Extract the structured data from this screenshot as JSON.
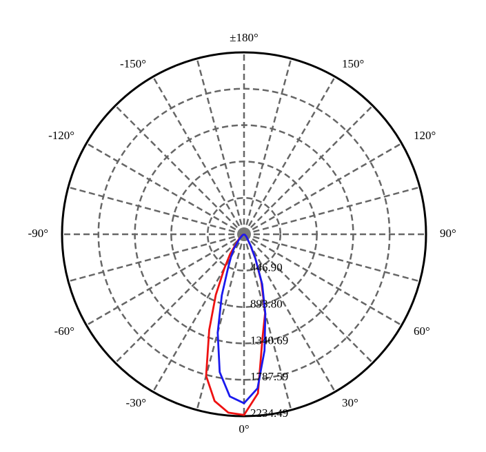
{
  "chart_data": {
    "type": "polar",
    "rlim": [
      0,
      2234.49
    ],
    "rticks": [
      {
        "value": 446.9,
        "label": "446.90"
      },
      {
        "value": 893.8,
        "label": "893.80"
      },
      {
        "value": 1340.69,
        "label": "1340.69"
      },
      {
        "value": 1787.59,
        "label": "1787.59"
      },
      {
        "value": 2234.49,
        "label": "2234.49"
      }
    ],
    "thetaticks": [
      {
        "value": 180,
        "label": "±180°"
      },
      {
        "value": -150,
        "label": "-150°"
      },
      {
        "value": 150,
        "label": "150°"
      },
      {
        "value": -120,
        "label": "-120°"
      },
      {
        "value": 120,
        "label": "120°"
      },
      {
        "value": -90,
        "label": "-90°"
      },
      {
        "value": 90,
        "label": "90°"
      },
      {
        "value": -60,
        "label": "-60°"
      },
      {
        "value": 60,
        "label": "60°"
      },
      {
        "value": -30,
        "label": "-30°"
      },
      {
        "value": 30,
        "label": "30°"
      },
      {
        "value": 0,
        "label": "0°"
      }
    ],
    "x": [
      -90,
      -60,
      -45,
      -35,
      -30,
      -25,
      -20,
      -15,
      -10,
      -5,
      0,
      5,
      10,
      15,
      20,
      25,
      30,
      45,
      60,
      90
    ],
    "series": [
      {
        "color": "#ee1111",
        "values": [
          0,
          30,
          100,
          300,
          480,
          820,
          1250,
          1800,
          2080,
          2200,
          2220,
          1960,
          1300,
          1000,
          620,
          330,
          150,
          40,
          10,
          0
        ]
      },
      {
        "color": "#1a1aee",
        "values": [
          0,
          20,
          80,
          220,
          320,
          470,
          800,
          1250,
          1720,
          2000,
          2075,
          1900,
          1450,
          1010,
          650,
          330,
          160,
          40,
          10,
          0
        ]
      }
    ]
  }
}
